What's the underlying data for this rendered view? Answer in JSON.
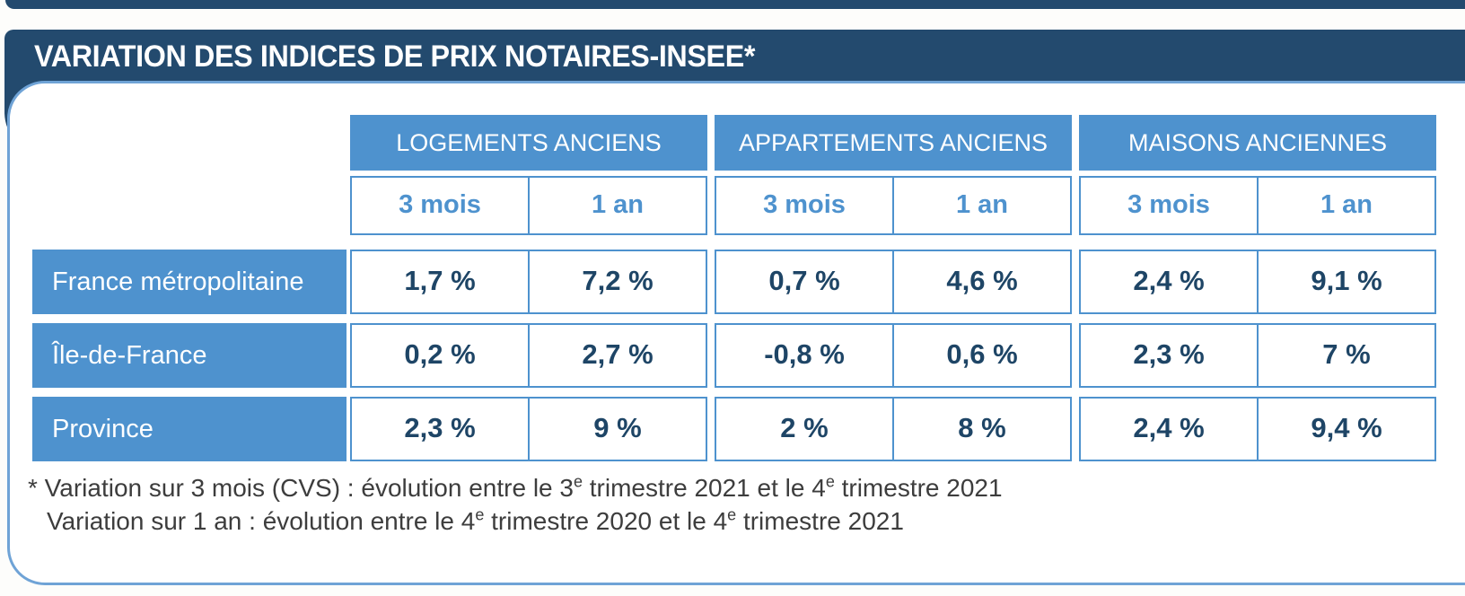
{
  "title": "VARIATION DES INDICES DE PRIX NOTAIRES-INSEE*",
  "colors": {
    "navy_band": "#234a6e",
    "medium_blue": "#4e92ce",
    "panel_border_blue": "#6fa3d6",
    "value_text_navy": "#1e4566",
    "footnote_gray": "#3d3d3d"
  },
  "table": {
    "groups": [
      "LOGEMENTS ANCIENS",
      "APPARTEMENTS ANCIENS",
      "MAISONS ANCIENNES"
    ],
    "period_headers": [
      "3 mois",
      "1 an",
      "3 mois",
      "1 an",
      "3 mois",
      "1 an"
    ],
    "rows": [
      {
        "label": "France métropolitaine",
        "values": [
          "1,7 %",
          "7,2 %",
          "0,7 %",
          "4,6 %",
          "2,4 %",
          "9,1 %"
        ]
      },
      {
        "label": "Île-de-France",
        "values": [
          "0,2 %",
          "2,7 %",
          "-0,8 %",
          "0,6 %",
          "2,3 %",
          "7 %"
        ]
      },
      {
        "label": "Province",
        "values": [
          "2,3 %",
          "9 %",
          "2 %",
          "8 %",
          "2,4 %",
          "9,4 %"
        ]
      }
    ]
  },
  "footnote": {
    "l1a": "* Variation sur 3 mois (CVS) : évolution entre le 3",
    "l1sup1": "e",
    "l1b": " trimestre 2021 et le 4",
    "l1sup2": "e",
    "l1c": " trimestre 2021",
    "l2a": "Variation sur 1 an : évolution entre le 4",
    "l2sup1": "e",
    "l2b": " trimestre 2020 et le 4",
    "l2sup2": "e",
    "l2c": " trimestre 2021"
  },
  "chart_data": {
    "type": "table",
    "title": "VARIATION DES INDICES DE PRIX NOTAIRES-INSEE*",
    "column_groups": [
      "LOGEMENTS ANCIENS",
      "APPARTEMENTS ANCIENS",
      "MAISONS ANCIENNES"
    ],
    "columns": [
      "Logements anciens – 3 mois",
      "Logements anciens – 1 an",
      "Appartements anciens – 3 mois",
      "Appartements anciens – 1 an",
      "Maisons anciennes – 3 mois",
      "Maisons anciennes – 1 an"
    ],
    "unit": "%",
    "rows": [
      {
        "region": "France métropolitaine",
        "values": [
          1.7,
          7.2,
          0.7,
          4.6,
          2.4,
          9.1
        ]
      },
      {
        "region": "Île-de-France",
        "values": [
          0.2,
          2.7,
          -0.8,
          0.6,
          2.3,
          7.0
        ]
      },
      {
        "region": "Province",
        "values": [
          2.3,
          9.0,
          2.0,
          8.0,
          2.4,
          9.4
        ]
      }
    ],
    "notes": [
      "* Variation sur 3 mois (CVS) : évolution entre le 3e trimestre 2021 et le 4e trimestre 2021",
      "Variation sur 1 an : évolution entre le 4e trimestre 2020 et le 4e trimestre 2021"
    ]
  }
}
